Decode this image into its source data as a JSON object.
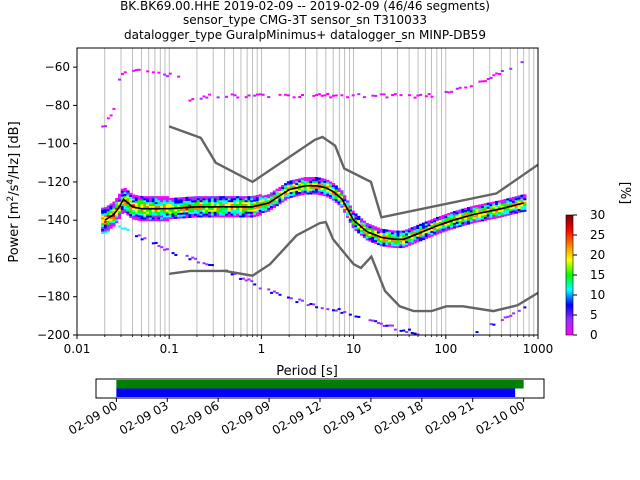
{
  "chart_data": {
    "type": "heatmap",
    "title": [
      "BK.BK69.00.HHE   2019-02-09 -- 2019-02-09  (46/46 segments)",
      "sensor_type CMG-3T sensor_sn T310033",
      "datalogger_type GuralpMinimus+ datalogger_sn MINP-DB59"
    ],
    "xlabel": "Period [s]",
    "ylabel": "Power [m²/s⁴/Hz] [dB]",
    "x_scale": "log",
    "xlim": [
      0.01,
      1000
    ],
    "ylim": [
      -200,
      -50
    ],
    "x_ticks": [
      "0.01",
      "0.1",
      "1",
      "10",
      "100",
      "1000"
    ],
    "x_tick_values": [
      0.01,
      0.1,
      1,
      10,
      100,
      1000
    ],
    "y_ticks": [
      "-200",
      "-180",
      "-160",
      "-140",
      "-120",
      "-100",
      "-80",
      "-60"
    ],
    "y_tick_values": [
      -200,
      -180,
      -160,
      -140,
      -120,
      -100,
      -80,
      -60
    ],
    "grid": "vertical log grid",
    "colorbar": {
      "label": "[%]",
      "range": [
        0,
        30
      ],
      "ticks": [
        "0",
        "5",
        "10",
        "15",
        "20",
        "25",
        "30"
      ],
      "tick_values": [
        0,
        5,
        10,
        15,
        20,
        25,
        30
      ],
      "colors": [
        "#ff00ff",
        "#9b30ff",
        "#0000ff",
        "#00ffff",
        "#00ff00",
        "#ffff00",
        "#ff8000",
        "#ff0000",
        "#800000"
      ]
    },
    "noise_models": [
      {
        "role": "high",
        "points": [
          [
            0.1,
            -91
          ],
          [
            0.22,
            -97
          ],
          [
            0.32,
            -110
          ],
          [
            0.8,
            -120
          ],
          [
            3.8,
            -98
          ],
          [
            4.6,
            -96.5
          ],
          [
            6.3,
            -101
          ],
          [
            7.9,
            -113
          ],
          [
            15.4,
            -120
          ],
          [
            20,
            -138.5
          ],
          [
            354.8,
            -126
          ],
          [
            1000,
            -111
          ]
        ]
      },
      {
        "role": "low",
        "points": [
          [
            0.1,
            -168
          ],
          [
            0.17,
            -166.5
          ],
          [
            0.4,
            -166.5
          ],
          [
            0.8,
            -169
          ],
          [
            1.24,
            -163
          ],
          [
            2.4,
            -148
          ],
          [
            4.3,
            -141.5
          ],
          [
            5,
            -141
          ],
          [
            6,
            -150
          ],
          [
            10,
            -163
          ],
          [
            12,
            -165
          ],
          [
            15.6,
            -159
          ],
          [
            21.9,
            -177
          ],
          [
            31.6,
            -185
          ],
          [
            45,
            -187.5
          ],
          [
            70,
            -187.5
          ],
          [
            101,
            -185
          ],
          [
            154,
            -185
          ],
          [
            328,
            -187.5
          ],
          [
            600,
            -184.5
          ],
          [
            1000,
            -178
          ]
        ]
      }
    ],
    "mode": {
      "x": [
        0.02,
        0.025,
        0.028,
        0.032,
        0.04,
        0.05,
        0.07,
        0.1,
        0.2,
        0.4,
        0.8,
        1.2,
        2,
        3,
        4,
        5,
        6,
        7.5,
        10,
        14,
        20,
        28,
        35,
        50,
        80,
        120,
        200,
        400,
        700
      ],
      "y": [
        -140,
        -137,
        -134,
        -129,
        -133,
        -134,
        -134,
        -134,
        -133,
        -133,
        -133,
        -131,
        -124,
        -122,
        -122,
        -123,
        -125,
        -129,
        -140,
        -146,
        -149,
        -150,
        -150,
        -147,
        -143,
        -140,
        -137,
        -134,
        -131
      ]
    },
    "upper_cloud": {
      "x": [
        0.02,
        0.022,
        0.024,
        0.026,
        0.03,
        0.035,
        0.05,
        0.07,
        0.1,
        0.13,
        0.15,
        0.2,
        0.3,
        0.5,
        1,
        2,
        5,
        10,
        14,
        20,
        50,
        100,
        150,
        300,
        500,
        700
      ],
      "y": [
        -91,
        -87,
        -84,
        -80,
        -63,
        -62,
        -61,
        -62,
        -64,
        -64,
        -78,
        -76,
        -75,
        -75,
        -75,
        -75,
        -75,
        -75,
        -75,
        -75,
        -75,
        -74,
        -71,
        -66,
        -61,
        -57
      ]
    },
    "lower_cloud": {
      "x": [
        0.02,
        0.03,
        0.05,
        0.1,
        0.2,
        0.5,
        1,
        2,
        5,
        10,
        20,
        30,
        50,
        100,
        200,
        400,
        700
      ],
      "y": [
        -146,
        -143,
        -149,
        -156,
        -161,
        -168,
        -175,
        -181,
        -186,
        -189,
        -194,
        -197,
        -199,
        -201,
        -199,
        -193,
        -185
      ]
    }
  },
  "timeline": {
    "ticks": [
      "02-09 00",
      "02-09 03",
      "02-09 06",
      "02-09 09",
      "02-09 12",
      "02-09 15",
      "02-09 18",
      "02-09 21",
      "02-10 00"
    ],
    "tick_values_hours": [
      0,
      3,
      6,
      9,
      12,
      15,
      18,
      21,
      24
    ],
    "range_hours": [
      -1.2,
      25.2
    ],
    "bars": [
      {
        "color": "#008000",
        "start_h": 0,
        "end_h": 24.0
      },
      {
        "color": "#0000ff",
        "start_h": 0,
        "end_h": 23.5
      }
    ]
  }
}
